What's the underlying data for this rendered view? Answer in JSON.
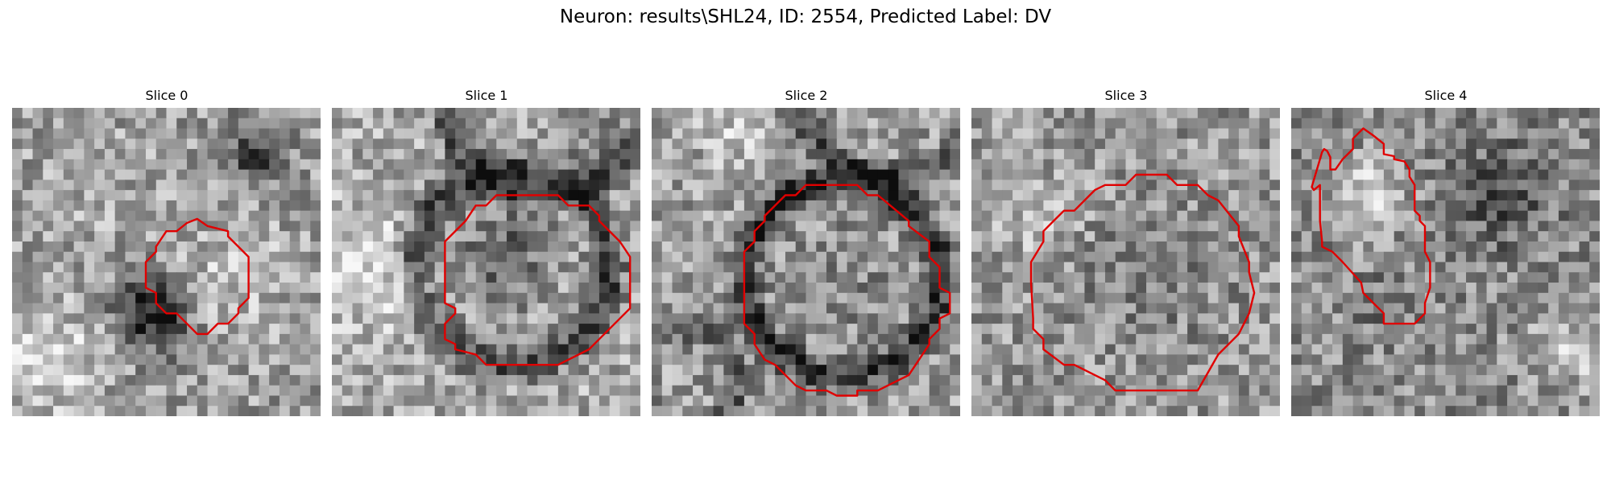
{
  "figure": {
    "title": "Neuron: results\\SHL24, ID: 2554, Predicted Label: DV",
    "contour_color": "#e00000"
  },
  "panels": [
    {
      "title": "Slice 0"
    },
    {
      "title": "Slice 1"
    },
    {
      "title": "Slice 2"
    },
    {
      "title": "Slice 3"
    },
    {
      "title": "Slice 4"
    }
  ]
}
